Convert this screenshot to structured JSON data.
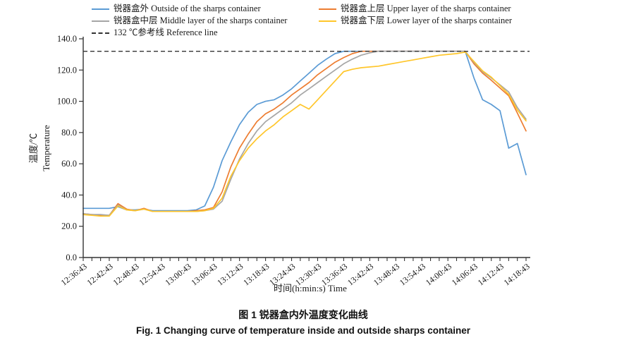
{
  "caption": {
    "zh": "图 1  锐器盒内外温度变化曲线",
    "en": "Fig. 1  Changing curve of temperature inside and outside sharps container"
  },
  "chart_data": {
    "type": "line",
    "grid": false,
    "legend_position": "top",
    "xlabel": "时间(h:min:s)  Time",
    "ylabel_zh": "温度/℃",
    "ylabel_en": "Temperature",
    "ylim": [
      0,
      140
    ],
    "y_ticks": [
      "0.0",
      "20.0",
      "40.0",
      "60.0",
      "80.0",
      "100.0",
      "120.0",
      "140.0"
    ],
    "x_major_tick_labels": [
      "12:36:43",
      "12:42:43",
      "12:48:43",
      "12:54:43",
      "13:00:43",
      "13:06:43",
      "13:12:43",
      "13:18:43",
      "13:24:43",
      "13:30:43",
      "13:36:43",
      "13:42:43",
      "13:48:43",
      "13:54:43",
      "14:00:43",
      "14:06:43",
      "14:12:43",
      "14:18:43"
    ],
    "x": [
      "12:36:43",
      "12:38:43",
      "12:40:43",
      "12:42:43",
      "12:44:43",
      "12:46:43",
      "12:48:43",
      "12:50:43",
      "12:52:43",
      "12:54:43",
      "12:56:43",
      "12:58:43",
      "13:00:43",
      "13:02:43",
      "13:04:43",
      "13:06:43",
      "13:08:43",
      "13:10:43",
      "13:12:43",
      "13:14:43",
      "13:16:43",
      "13:18:43",
      "13:20:43",
      "13:22:43",
      "13:24:43",
      "13:26:43",
      "13:28:43",
      "13:30:43",
      "13:32:43",
      "13:34:43",
      "13:36:43",
      "13:38:43",
      "13:40:43",
      "13:42:43",
      "13:44:43",
      "13:46:43",
      "13:48:43",
      "13:50:43",
      "13:52:43",
      "13:54:43",
      "13:56:43",
      "13:58:43",
      "14:00:43",
      "14:02:43",
      "14:04:43",
      "14:06:43",
      "14:08:43",
      "14:10:43",
      "14:12:43",
      "14:14:43",
      "14:16:43",
      "14:18:43"
    ],
    "series": [
      {
        "key": "outside",
        "name": "锐器盒外 Outside of the sharps container",
        "color": "#5B9BD5",
        "values": [
          31.5,
          31.5,
          31.5,
          31.5,
          32.5,
          30.5,
          30.5,
          31,
          30,
          30,
          30,
          30,
          30,
          30.5,
          33,
          45,
          62,
          74,
          85,
          93,
          98,
          100,
          101,
          104,
          108,
          113,
          118,
          123,
          127,
          130.5,
          132,
          132,
          132,
          132,
          132,
          132,
          132,
          132,
          132,
          132,
          132,
          132,
          132,
          132,
          132,
          115,
          101,
          98,
          94,
          70,
          73,
          53
        ]
      },
      {
        "key": "upper-layer",
        "name": "锐器盒上层 Upper layer of the sharps container",
        "color": "#ED7D31",
        "values": [
          28,
          27.5,
          27,
          27,
          34.5,
          31,
          30,
          31.5,
          29.5,
          29.5,
          29.5,
          29.5,
          29.5,
          30,
          30.5,
          32,
          42,
          58,
          70,
          79,
          87,
          92,
          95,
          99,
          104,
          108,
          112,
          117,
          121,
          125,
          128,
          130.5,
          132,
          132,
          132,
          132,
          132,
          132,
          132,
          132,
          132,
          132,
          132,
          132,
          132,
          124,
          118,
          113.5,
          108.5,
          103.5,
          92.5,
          81
        ]
      },
      {
        "key": "middle-layer",
        "name": "锐器盒中层 Middle layer of the sharps container",
        "color": "#A6A6A6",
        "values": [
          28,
          27.5,
          27.5,
          27,
          33.5,
          30.5,
          30,
          31,
          29.5,
          29.5,
          29.5,
          29.5,
          29.5,
          29.5,
          30,
          31,
          36,
          50,
          63,
          73,
          81,
          87,
          91,
          95,
          99,
          104,
          108,
          112,
          116,
          120,
          124,
          127,
          129.5,
          131,
          132,
          132,
          132,
          132,
          132,
          132,
          132,
          132,
          132,
          132,
          132,
          125,
          119,
          115,
          110.5,
          106,
          96,
          88.5
        ]
      },
      {
        "key": "lower-layer",
        "name": "锐器盒下层 Lower layer of the sharps container",
        "color": "#FFC62B",
        "values": [
          27.5,
          27,
          26.5,
          26.5,
          33,
          30.5,
          30,
          31,
          29.5,
          29.5,
          29.5,
          29.5,
          29.5,
          29.5,
          30,
          31.5,
          38,
          52,
          62,
          70,
          76,
          81,
          85,
          90,
          94,
          98,
          95,
          101,
          107,
          113,
          119,
          120.5,
          121.5,
          122,
          122.5,
          123.5,
          124.5,
          125.5,
          126.5,
          127.5,
          128.5,
          129.5,
          130,
          130.5,
          131.5,
          125.5,
          119.5,
          115.5,
          110,
          104.5,
          94.5,
          87.5
        ]
      }
    ],
    "reference_line": {
      "label": "132 ℃参考线 Reference line",
      "value": 132,
      "color": "#333333",
      "style": "dashed"
    }
  }
}
